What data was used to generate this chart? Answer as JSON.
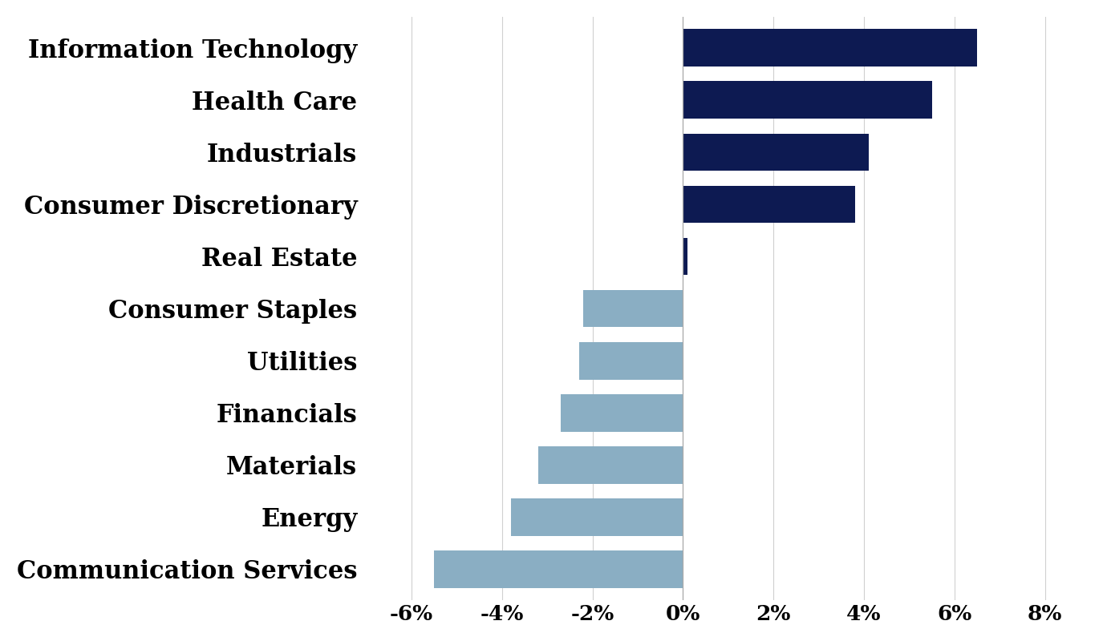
{
  "categories": [
    "Communication Services",
    "Energy",
    "Materials",
    "Financials",
    "Utilities",
    "Consumer Staples",
    "Real Estate",
    "Consumer Discretionary",
    "Industrials",
    "Health Care",
    "Information Technology"
  ],
  "values": [
    -5.5,
    -3.8,
    -3.2,
    -2.7,
    -2.3,
    -2.2,
    0.1,
    3.8,
    4.1,
    5.5,
    6.5
  ],
  "positive_color": "#0d1a52",
  "negative_color": "#8aaec3",
  "background_color": "#ffffff",
  "xlim": [
    -7,
    9
  ],
  "xticks": [
    -6,
    -4,
    -2,
    0,
    2,
    4,
    6,
    8
  ],
  "xtick_labels": [
    "-6%",
    "-4%",
    "-2%",
    "0%",
    "2%",
    "4%",
    "6%",
    "8%"
  ],
  "grid_color": "#d0d0d0",
  "bar_height": 0.72,
  "label_fontsize": 22,
  "tick_fontsize": 19,
  "figsize": [
    13.8,
    8.0
  ],
  "dpi": 100
}
